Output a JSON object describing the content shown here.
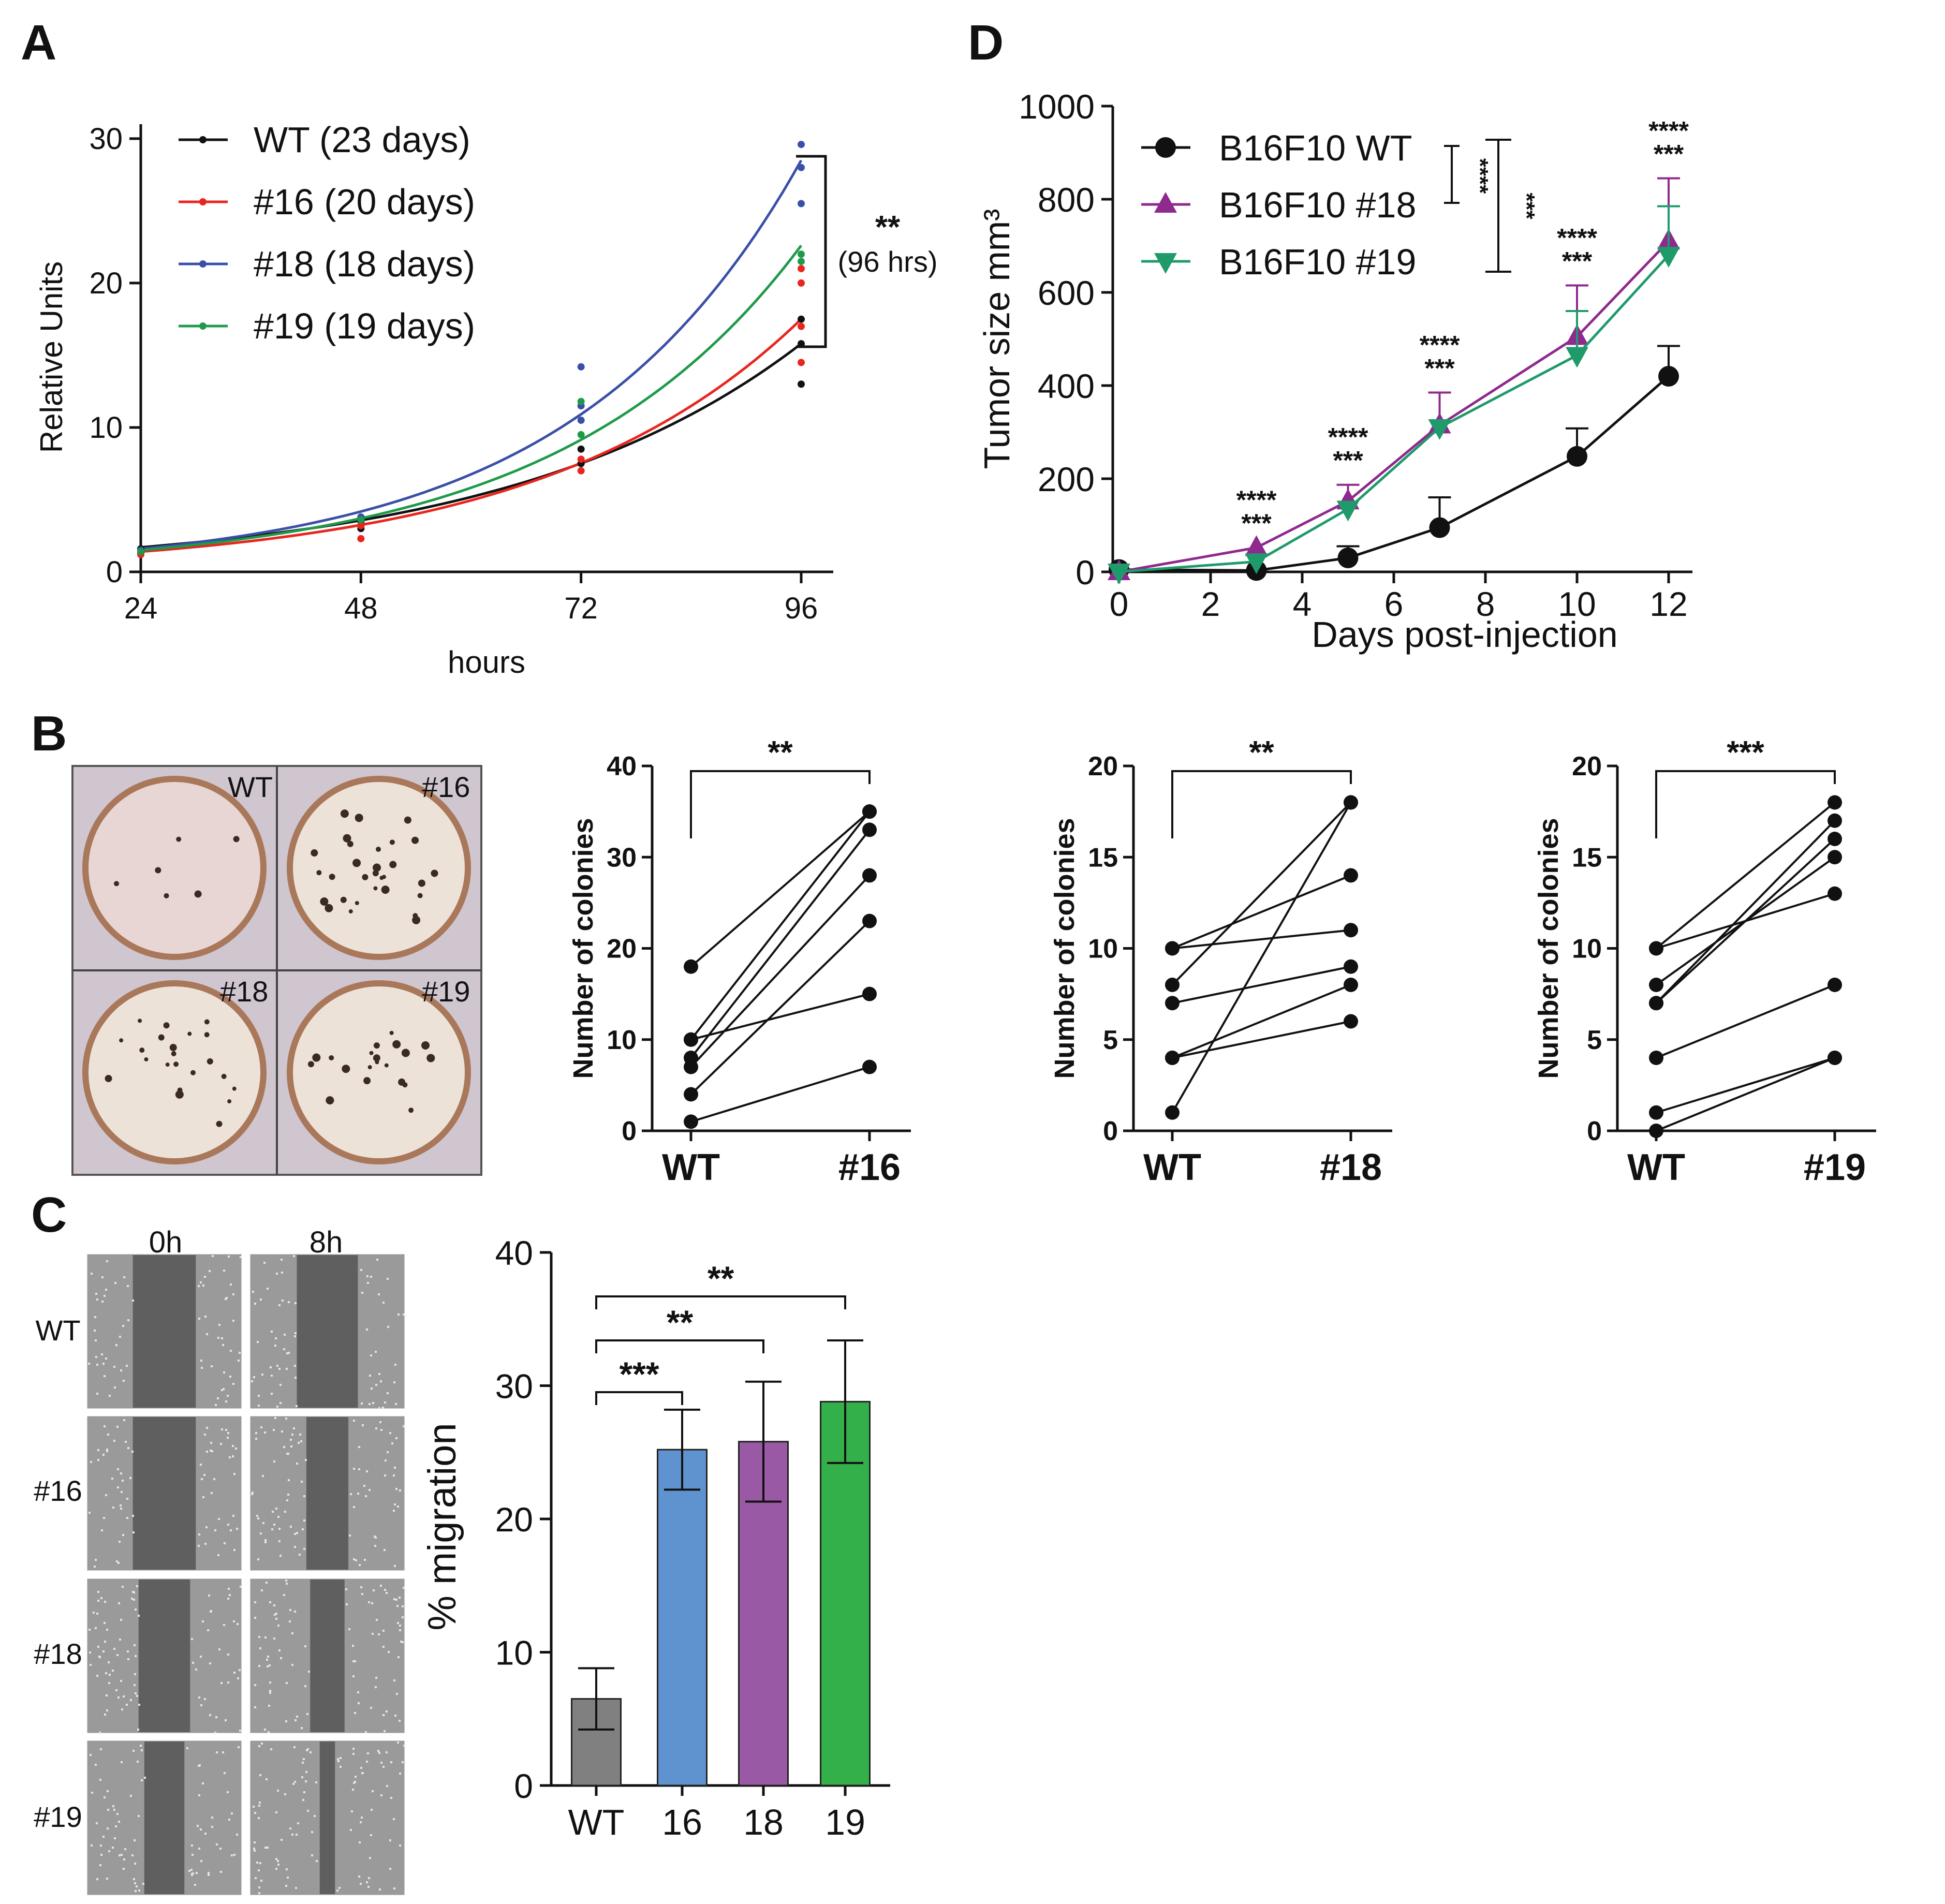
{
  "panels": {
    "a_letter": "A",
    "b_letter": "B",
    "c_letter": "C",
    "d_letter": "D"
  },
  "chart_data": [
    {
      "id": "A",
      "type": "line",
      "title": "",
      "xlabel": "hours",
      "ylabel": "Relative Units",
      "x": [
        24,
        48,
        72,
        96
      ],
      "xticks": [
        "24",
        "48",
        "72",
        "96"
      ],
      "yticks": [
        "0",
        "10",
        "20",
        "30"
      ],
      "xlim": [
        24,
        96
      ],
      "ylim": [
        0,
        31
      ],
      "series": [
        {
          "name": "WT (23 days)",
          "color": "#111111",
          "values": [
            1.7,
            3.9,
            8.0,
            15.8
          ]
        },
        {
          "name": "#16 (20 days)",
          "color": "#e8261e",
          "values": [
            1.4,
            3.3,
            7.6,
            17.5
          ]
        },
        {
          "name": "#18 (18 days)",
          "color": "#3a4fa8",
          "values": [
            1.6,
            4.2,
            10.9,
            28.5
          ]
        },
        {
          "name": "#19 (19 days)",
          "color": "#1f9a4a",
          "values": [
            1.5,
            3.9,
            9.4,
            22.6
          ]
        }
      ],
      "points": {
        "WT (23 days)": [
          [
            24,
            1.3
          ],
          [
            24,
            1.6
          ],
          [
            48,
            3.0
          ],
          [
            48,
            3.5
          ],
          [
            72,
            7.5
          ],
          [
            72,
            8.5
          ],
          [
            96,
            13.0
          ],
          [
            96,
            15.8
          ],
          [
            96,
            17.5
          ]
        ],
        "#16 (20 days)": [
          [
            24,
            1.2
          ],
          [
            48,
            2.3
          ],
          [
            48,
            3.2
          ],
          [
            72,
            7.0
          ],
          [
            72,
            7.8
          ],
          [
            96,
            14.5
          ],
          [
            96,
            17.0
          ],
          [
            96,
            20.0
          ],
          [
            96,
            21.0
          ]
        ],
        "#18 (18 days)": [
          [
            24,
            1.5
          ],
          [
            48,
            3.8
          ],
          [
            72,
            10.5
          ],
          [
            72,
            11.5
          ],
          [
            72,
            14.2
          ],
          [
            96,
            25.5
          ],
          [
            96,
            28.0
          ],
          [
            96,
            29.6
          ]
        ],
        "#19 (19 days)": [
          [
            24,
            1.4
          ],
          [
            48,
            3.6
          ],
          [
            72,
            9.5
          ],
          [
            72,
            11.8
          ],
          [
            96,
            21.5
          ],
          [
            96,
            22.0
          ]
        ]
      },
      "annotation": {
        "stars": "**",
        "text": "(96 hrs)"
      }
    },
    {
      "id": "D",
      "type": "line",
      "xlabel": "Days post-injection",
      "ylabel": "Tumor size mm³",
      "x": [
        0,
        3,
        5,
        7,
        10,
        12
      ],
      "xticks": [
        "0",
        "2",
        "4",
        "6",
        "8",
        "10",
        "12"
      ],
      "yticks": [
        "0",
        "200",
        "400",
        "600",
        "800",
        "1000"
      ],
      "xlim": [
        0,
        12.5
      ],
      "ylim": [
        0,
        1000
      ],
      "series": [
        {
          "name": "B16F10 WT",
          "color": "#111111",
          "marker": "circle",
          "values": [
            5,
            3,
            30,
            95,
            248,
            420
          ],
          "errors": [
            0,
            0,
            25,
            65,
            60,
            65
          ]
        },
        {
          "name": "B16F10 #18",
          "color": "#8e2a8e",
          "marker": "triangle-up",
          "values": [
            0,
            52,
            152,
            315,
            505,
            710
          ],
          "errors": [
            0,
            0,
            35,
            70,
            110,
            135
          ]
        },
        {
          "name": "B16F10 #19",
          "color": "#1f9a6a",
          "marker": "triangle-down",
          "values": [
            0,
            22,
            135,
            310,
            465,
            680
          ],
          "errors": [
            0,
            0,
            0,
            0,
            95,
            105
          ]
        }
      ],
      "point_annotations": [
        {
          "x": 3,
          "top": "****",
          "bottom": "***"
        },
        {
          "x": 5,
          "top": "****",
          "bottom": "***"
        },
        {
          "x": 7,
          "top": "****",
          "bottom": "***"
        },
        {
          "x": 10,
          "top": "****",
          "bottom": "***"
        },
        {
          "x": 12,
          "top": "****",
          "bottom": "***"
        }
      ],
      "legend_brackets": [
        {
          "stars": "****"
        },
        {
          "stars": "***"
        }
      ]
    },
    {
      "id": "B1",
      "type": "scatter",
      "ylabel": "Number of colonies",
      "categories": [
        "WT",
        "#16"
      ],
      "ylim": [
        0,
        40
      ],
      "yticks": [
        "0",
        "10",
        "20",
        "30",
        "40"
      ],
      "pairs": [
        [
          18,
          35
        ],
        [
          10,
          35
        ],
        [
          10,
          15
        ],
        [
          8,
          33
        ],
        [
          7,
          28
        ],
        [
          4,
          23
        ],
        [
          1,
          7
        ]
      ],
      "significance": "**"
    },
    {
      "id": "B2",
      "type": "scatter",
      "ylabel": "Number of colonies",
      "categories": [
        "WT",
        "#18"
      ],
      "ylim": [
        0,
        20
      ],
      "yticks": [
        "0",
        "5",
        "10",
        "15",
        "20"
      ],
      "pairs": [
        [
          10,
          14
        ],
        [
          10,
          11
        ],
        [
          8,
          18
        ],
        [
          7,
          9
        ],
        [
          4,
          8
        ],
        [
          4,
          6
        ],
        [
          1,
          18
        ]
      ],
      "significance": "**"
    },
    {
      "id": "B3",
      "type": "scatter",
      "ylabel": "Number of colonies",
      "categories": [
        "WT",
        "#19"
      ],
      "ylim": [
        0,
        20
      ],
      "yticks": [
        "0",
        "5",
        "10",
        "15",
        "20"
      ],
      "pairs": [
        [
          10,
          18
        ],
        [
          10,
          13
        ],
        [
          8,
          15
        ],
        [
          7,
          16
        ],
        [
          4,
          8
        ],
        [
          1,
          4
        ],
        [
          0,
          4
        ],
        [
          7,
          17
        ]
      ],
      "significance": "***"
    },
    {
      "id": "C",
      "type": "bar",
      "ylabel": "% migration",
      "categories": [
        "WT",
        "16",
        "18",
        "19"
      ],
      "values": [
        6.5,
        25.2,
        25.8,
        28.8
      ],
      "errors": [
        2.3,
        3.0,
        4.5,
        4.6
      ],
      "colors": [
        "#808080",
        "#5f93cf",
        "#9a59a4",
        "#34b04a"
      ],
      "ylim": [
        0,
        40
      ],
      "yticks": [
        "0",
        "10",
        "20",
        "30",
        "40"
      ],
      "comparisons": [
        {
          "from": "WT",
          "to": "16",
          "stars": "***"
        },
        {
          "from": "WT",
          "to": "18",
          "stars": "**"
        },
        {
          "from": "WT",
          "to": "19",
          "stars": "**"
        }
      ]
    }
  ],
  "colony_plates": {
    "labels": [
      "WT",
      "#16",
      "#18",
      "#19"
    ]
  },
  "scratch_assay": {
    "columns": [
      "0h",
      "8h"
    ],
    "rows": [
      "WT",
      "#16",
      "#18",
      "#19"
    ]
  }
}
